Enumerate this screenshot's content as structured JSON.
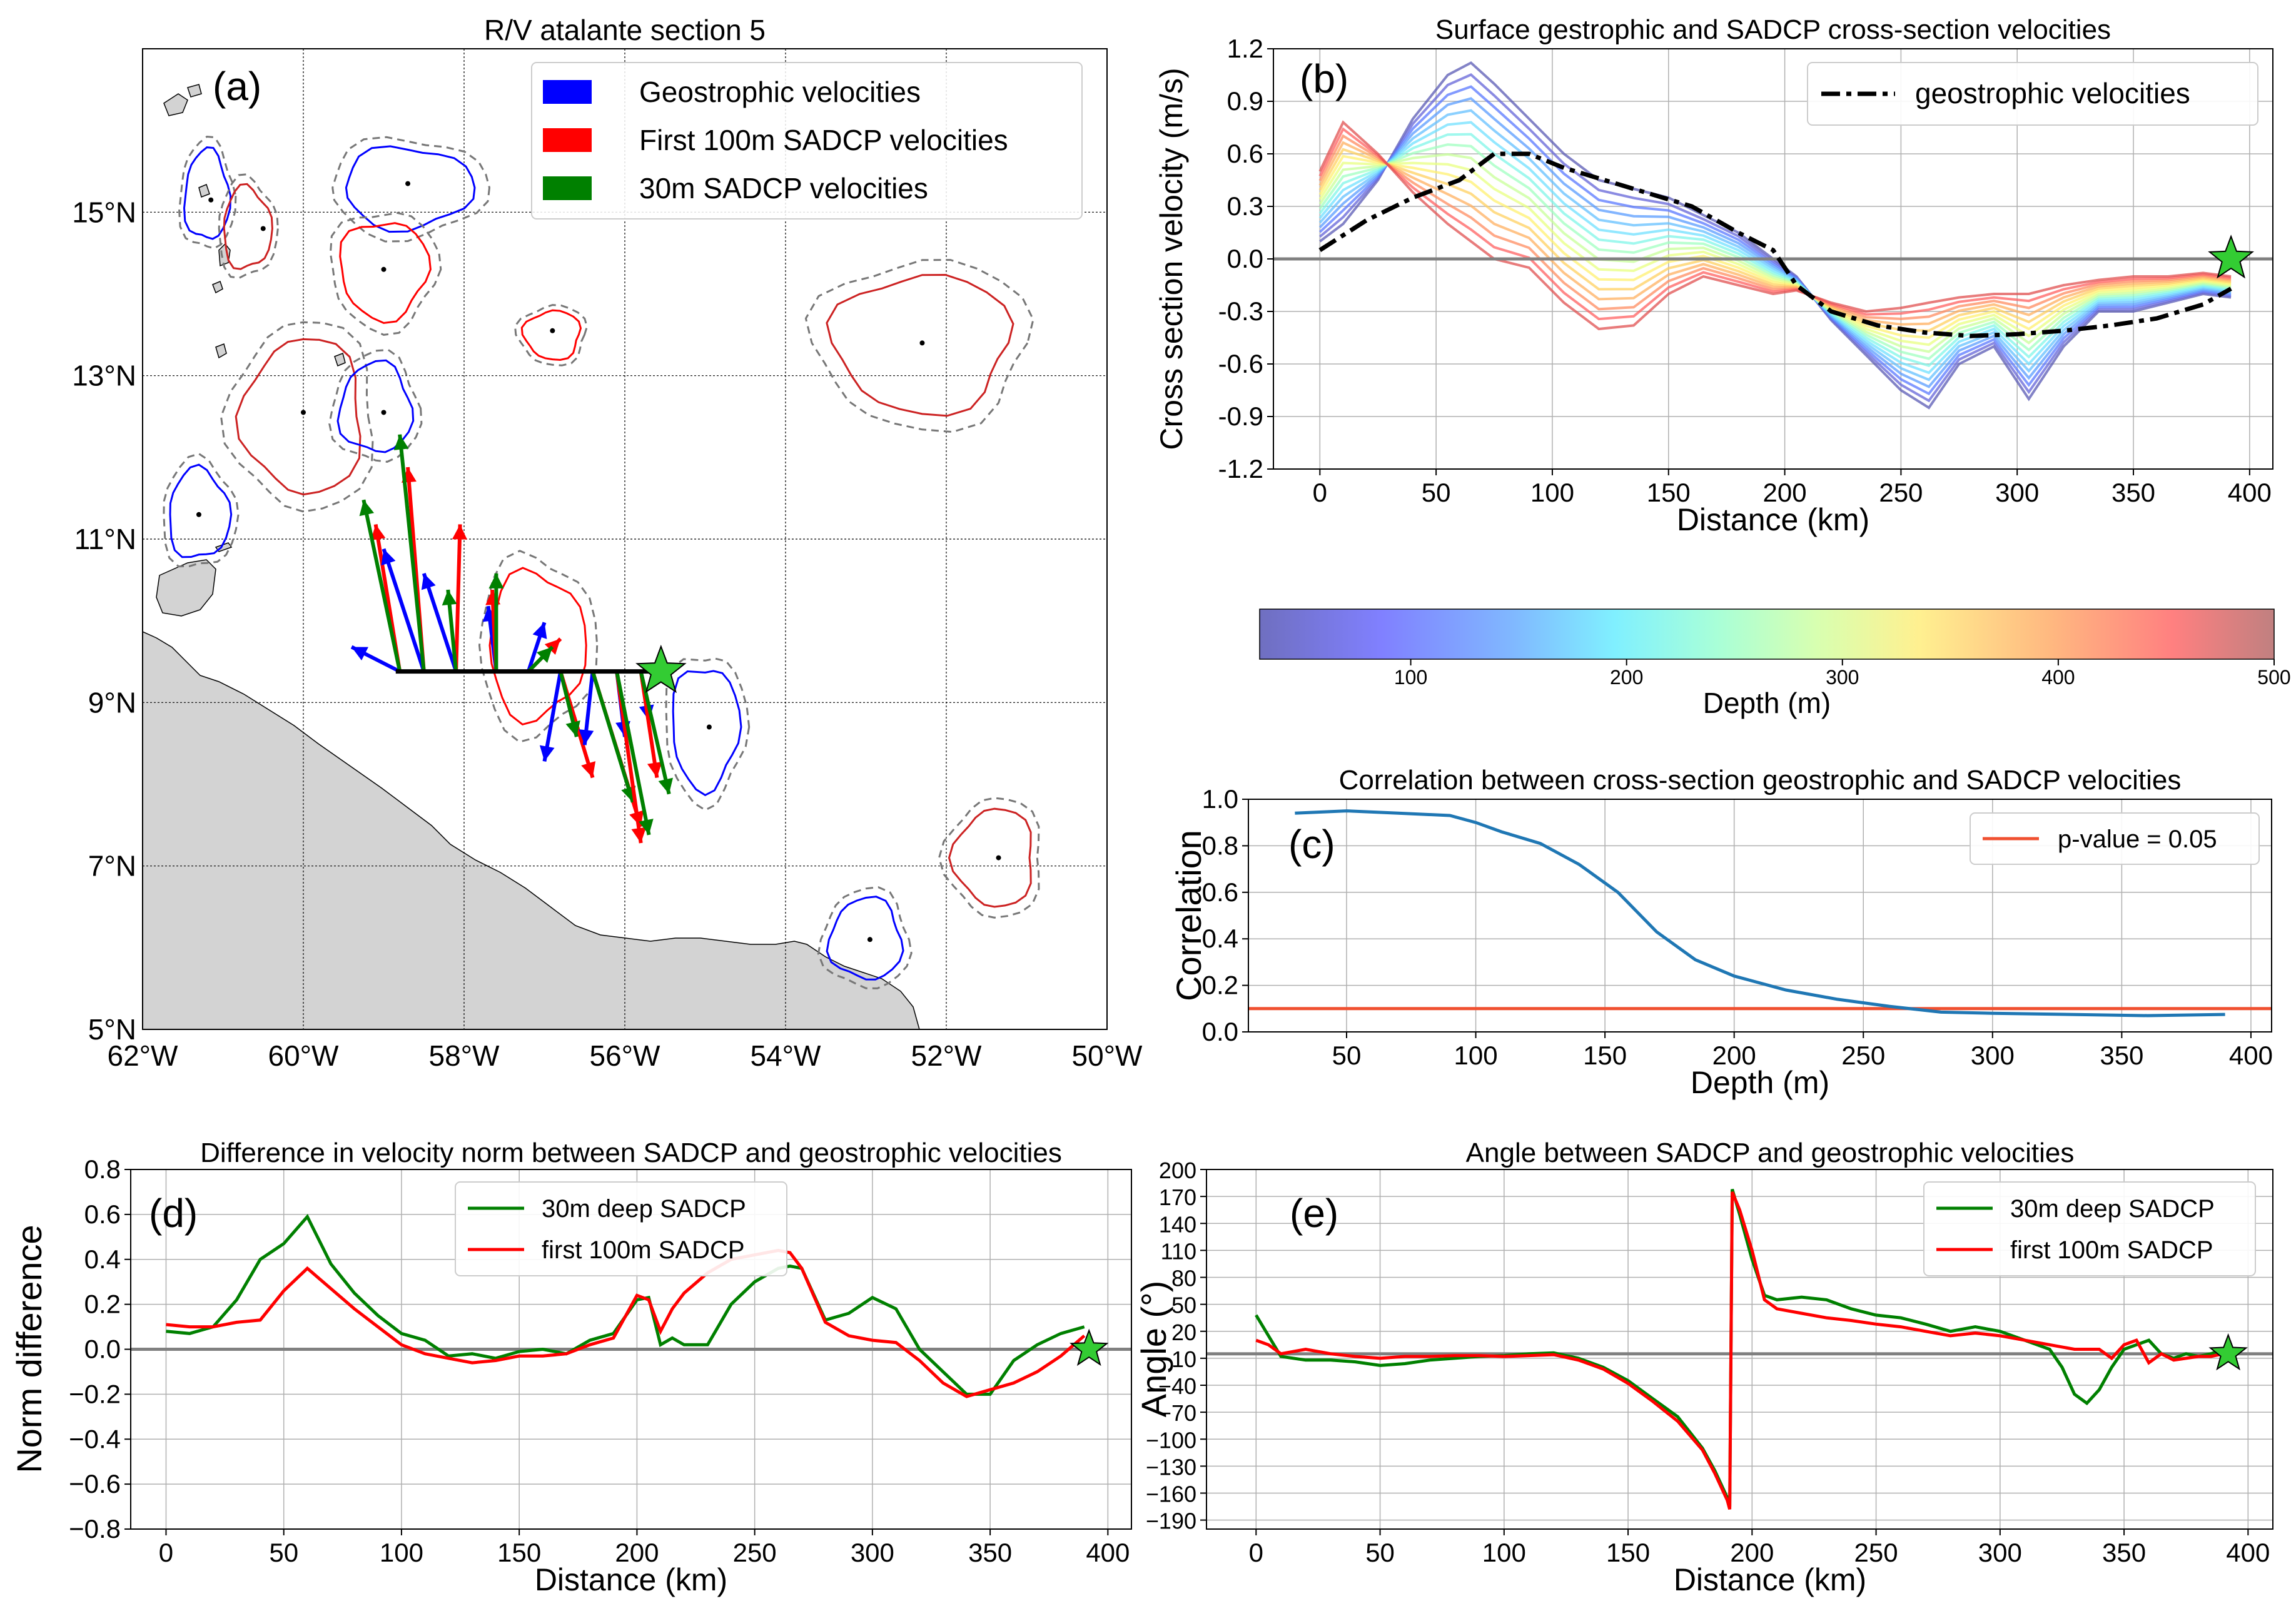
{
  "figure": {
    "panels": [
      "a",
      "b",
      "c",
      "d",
      "e"
    ]
  },
  "chart_data": [
    {
      "id": "a",
      "type": "map",
      "title": "R/V atalante section 5",
      "panel_label": "(a)",
      "lon_range": [
        -62,
        -50
      ],
      "lat_range": [
        5,
        17
      ],
      "x_ticks": [
        {
          "v": -62,
          "t": "62°W"
        },
        {
          "v": -60,
          "t": "60°W"
        },
        {
          "v": -58,
          "t": "58°W"
        },
        {
          "v": -56,
          "t": "56°W"
        },
        {
          "v": -54,
          "t": "54°W"
        },
        {
          "v": -52,
          "t": "52°W"
        },
        {
          "v": -50,
          "t": "50°W"
        }
      ],
      "y_ticks": [
        {
          "v": 5,
          "t": "5°N"
        },
        {
          "v": 7,
          "t": "7°N"
        },
        {
          "v": 9,
          "t": "9°N"
        },
        {
          "v": 11,
          "t": "11°N"
        },
        {
          "v": 13,
          "t": "13°N"
        },
        {
          "v": 15,
          "t": "15°N"
        }
      ],
      "legend": [
        {
          "label": "Geostrophic velocities",
          "color": "#0000ff"
        },
        {
          "label": "First 100m SADCP velocities",
          "color": "#ff0000"
        },
        {
          "label": "30m SADCP velocities",
          "color": "#008000"
        }
      ],
      "section": {
        "lon": [
          -58.85,
          -55.55
        ],
        "lat": 9.38,
        "end_marker": "star",
        "end_lon": -55.55
      },
      "eddies": [
        {
          "lon": -61.2,
          "lat": 15.2,
          "r_lon": 0.28,
          "r_lat": 0.55,
          "color": "#0000ff"
        },
        {
          "lon": -60.7,
          "lat": 14.8,
          "r_lon": 0.3,
          "r_lat": 0.5,
          "color": "#cc2222"
        },
        {
          "lon": -58.7,
          "lat": 15.3,
          "r_lon": 0.8,
          "r_lat": 0.5,
          "color": "#0000ff"
        },
        {
          "lon": -59.0,
          "lat": 14.3,
          "r_lon": 0.55,
          "r_lat": 0.6,
          "color": "#ff0000"
        },
        {
          "lon": -56.9,
          "lat": 13.5,
          "r_lon": 0.35,
          "r_lat": 0.3,
          "color": "#ff0000"
        },
        {
          "lon": -60.0,
          "lat": 12.5,
          "r_lon": 0.75,
          "r_lat": 0.95,
          "color": "#cc2222"
        },
        {
          "lon": -59.1,
          "lat": 12.6,
          "r_lon": 0.45,
          "r_lat": 0.55,
          "color": "#0000ff"
        },
        {
          "lon": -61.3,
          "lat": 11.3,
          "r_lon": 0.38,
          "r_lat": 0.55,
          "color": "#0000ff"
        },
        {
          "lon": -57.1,
          "lat": 9.7,
          "r_lon": 0.6,
          "r_lat": 0.9,
          "color": "#ff0000"
        },
        {
          "lon": -55.0,
          "lat": 8.7,
          "r_lon": 0.42,
          "r_lat": 0.75,
          "color": "#0000ff"
        },
        {
          "lon": -52.3,
          "lat": 13.4,
          "r_lon": 1.1,
          "r_lat": 0.85,
          "color": "#cc2222"
        },
        {
          "lon": -51.4,
          "lat": 7.1,
          "r_lon": 0.5,
          "r_lat": 0.6,
          "color": "#cc2222"
        },
        {
          "lon": -53.0,
          "lat": 6.1,
          "r_lon": 0.45,
          "r_lat": 0.5,
          "color": "#0000ff"
        }
      ],
      "eddy_centers": [
        {
          "lon": -61.15,
          "lat": 15.15
        },
        {
          "lon": -60.5,
          "lat": 14.8
        },
        {
          "lon": -58.7,
          "lat": 15.35
        },
        {
          "lon": -59.0,
          "lat": 14.3
        },
        {
          "lon": -56.9,
          "lat": 13.55
        },
        {
          "lon": -60.0,
          "lat": 12.55
        },
        {
          "lon": -59.0,
          "lat": 12.55
        },
        {
          "lon": -61.3,
          "lat": 11.3
        },
        {
          "lon": -54.95,
          "lat": 8.7
        },
        {
          "lon": -52.3,
          "lat": 13.4
        },
        {
          "lon": -51.35,
          "lat": 7.1
        },
        {
          "lon": -52.95,
          "lat": 6.1
        }
      ]
    },
    {
      "id": "b",
      "type": "line",
      "title": "Surface gestrophic and SADCP cross-section velocities",
      "panel_label": "(b)",
      "xlabel": "Distance (km)",
      "ylabel": "Cross section velocity (m/s)",
      "xlim": [
        -20,
        410
      ],
      "ylim": [
        -1.2,
        1.2
      ],
      "x_ticks": [
        0,
        50,
        100,
        150,
        200,
        250,
        300,
        350,
        400
      ],
      "y_ticks": [
        "-1.2",
        "-0.9",
        "-0.6",
        "-0.3",
        "0.0",
        "0.3",
        "0.6",
        "0.9",
        "1.2"
      ],
      "legend": [
        {
          "label": "geostrophic velocities",
          "style": "dash-dot",
          "color": "#000000"
        }
      ],
      "colorbar": {
        "label": "Depth (m)",
        "range": [
          30,
          500
        ],
        "ticks": [
          "100",
          "200",
          "300",
          "400",
          "500"
        ]
      },
      "depth_series_count": 16,
      "series": [
        {
          "name": "geostrophic velocities",
          "x": [
            0,
            20,
            40,
            60,
            75,
            90,
            105,
            120,
            140,
            160,
            180,
            195,
            205,
            220,
            240,
            260,
            280,
            300,
            320,
            340,
            360,
            380,
            392
          ],
          "y": [
            0.05,
            0.22,
            0.35,
            0.45,
            0.6,
            0.6,
            0.52,
            0.46,
            0.38,
            0.3,
            0.15,
            0.05,
            -0.15,
            -0.3,
            -0.38,
            -0.42,
            -0.44,
            -0.43,
            -0.41,
            -0.38,
            -0.34,
            -0.26,
            -0.17
          ]
        }
      ],
      "end_marker": {
        "x": 392,
        "y": 0.0
      }
    },
    {
      "id": "c",
      "type": "line",
      "title": "Correlation between cross-section geostrophic and SADCP velocities",
      "panel_label": "(c)",
      "xlabel": "Depth (m)",
      "ylabel": "Correlation",
      "xlim": [
        12,
        408
      ],
      "ylim": [
        0.0,
        1.0
      ],
      "x_ticks": [
        50,
        100,
        150,
        200,
        250,
        300,
        350,
        400
      ],
      "y_ticks": [
        "0.0",
        "0.2",
        "0.4",
        "0.6",
        "0.8",
        "1.0"
      ],
      "legend": [
        {
          "label": "p-value = 0.05",
          "color": "#f05030"
        }
      ],
      "pvalue_line": 0.1,
      "series": [
        {
          "name": "correlation",
          "color": "#1f77b4",
          "x": [
            30,
            50,
            70,
            90,
            100,
            110,
            125,
            140,
            155,
            170,
            185,
            200,
            220,
            240,
            260,
            280,
            300,
            330,
            360,
            390
          ],
          "y": [
            0.94,
            0.95,
            0.94,
            0.93,
            0.9,
            0.86,
            0.81,
            0.72,
            0.6,
            0.43,
            0.31,
            0.24,
            0.18,
            0.14,
            0.11,
            0.085,
            0.08,
            0.075,
            0.07,
            0.075
          ]
        }
      ]
    },
    {
      "id": "d",
      "type": "line",
      "title": "Difference in velocity norm between SADCP and geostrophic velocities",
      "panel_label": "(d)",
      "xlabel": "Distance (km)",
      "ylabel": "Norm difference",
      "xlim": [
        -15,
        410
      ],
      "ylim": [
        -0.8,
        0.8
      ],
      "x_ticks": [
        0,
        50,
        100,
        150,
        200,
        250,
        300,
        350,
        400
      ],
      "y_ticks": [
        "−0.8",
        "−0.6",
        "−0.4",
        "−0.2",
        "0.0",
        "0.2",
        "0.4",
        "0.6",
        "0.8"
      ],
      "legend": [
        {
          "label": "30m deep SADCP",
          "color": "#008000"
        },
        {
          "label": "first 100m SADCP",
          "color": "#ff0000"
        }
      ],
      "series": [
        {
          "name": "30m deep SADCP",
          "color": "#008000",
          "x": [
            0,
            10,
            20,
            30,
            40,
            50,
            60,
            70,
            80,
            90,
            100,
            110,
            120,
            130,
            140,
            150,
            160,
            170,
            180,
            190,
            200,
            205,
            210,
            215,
            220,
            230,
            240,
            250,
            260,
            265,
            270,
            280,
            290,
            300,
            310,
            320,
            330,
            340,
            350,
            360,
            370,
            380,
            390
          ],
          "y": [
            0.08,
            0.07,
            0.1,
            0.22,
            0.4,
            0.47,
            0.59,
            0.38,
            0.25,
            0.15,
            0.07,
            0.04,
            -0.03,
            -0.02,
            -0.04,
            -0.01,
            0.0,
            -0.02,
            0.04,
            0.07,
            0.22,
            0.23,
            0.02,
            0.05,
            0.02,
            0.02,
            0.2,
            0.3,
            0.36,
            0.37,
            0.36,
            0.13,
            0.16,
            0.23,
            0.18,
            0.0,
            -0.1,
            -0.2,
            -0.2,
            -0.05,
            0.02,
            0.07,
            0.1
          ]
        },
        {
          "name": "first 100m SADCP",
          "color": "#ff0000",
          "x": [
            0,
            10,
            20,
            30,
            40,
            50,
            60,
            70,
            80,
            90,
            100,
            110,
            120,
            130,
            140,
            150,
            160,
            170,
            180,
            190,
            200,
            205,
            210,
            215,
            220,
            230,
            240,
            250,
            260,
            265,
            270,
            280,
            290,
            300,
            310,
            320,
            330,
            340,
            350,
            360,
            370,
            380,
            390
          ],
          "y": [
            0.11,
            0.1,
            0.1,
            0.12,
            0.13,
            0.26,
            0.36,
            0.27,
            0.18,
            0.1,
            0.02,
            -0.02,
            -0.04,
            -0.06,
            -0.05,
            -0.03,
            -0.03,
            -0.02,
            0.02,
            0.05,
            0.24,
            0.22,
            0.08,
            0.18,
            0.25,
            0.34,
            0.4,
            0.42,
            0.44,
            0.43,
            0.36,
            0.12,
            0.06,
            0.04,
            0.03,
            -0.05,
            -0.15,
            -0.21,
            -0.18,
            -0.15,
            -0.1,
            -0.03,
            0.06
          ]
        }
      ],
      "end_marker": {
        "x": 392,
        "y": 0.0
      }
    },
    {
      "id": "e",
      "type": "line",
      "title": "Angle between SADCP and geostrophic velocities",
      "panel_label": "(e)",
      "xlabel": "Distance (km)",
      "ylabel": "Angle (°)",
      "xlim": [
        -20,
        410
      ],
      "ylim": [
        -200,
        200
      ],
      "x_ticks": [
        0,
        50,
        100,
        150,
        200,
        250,
        300,
        350,
        400
      ],
      "y_ticks": [
        "−190",
        "−160",
        "−130",
        "−100",
        "−70",
        "−40",
        "−10",
        "20",
        "50",
        "80",
        "110",
        "140",
        "170",
        "200"
      ],
      "legend": [
        {
          "label": "30m deep SADCP",
          "color": "#008000"
        },
        {
          "label": "first 100m SADCP",
          "color": "#ff0000"
        }
      ],
      "series": [
        {
          "name": "30m deep SADCP",
          "color": "#008000",
          "x": [
            0,
            5,
            10,
            20,
            30,
            40,
            50,
            60,
            70,
            80,
            90,
            100,
            110,
            120,
            130,
            140,
            150,
            160,
            170,
            180,
            185,
            190,
            191,
            192,
            195,
            200,
            205,
            210,
            220,
            230,
            240,
            250,
            260,
            270,
            280,
            290,
            300,
            310,
            320,
            325,
            330,
            335,
            340,
            345,
            350,
            355,
            360,
            365,
            370,
            375,
            380,
            385,
            390
          ],
          "y": [
            38,
            15,
            -8,
            -12,
            -12,
            -14,
            -18,
            -16,
            -12,
            -10,
            -8,
            -7,
            -5,
            -4,
            -10,
            -20,
            -35,
            -55,
            -75,
            -110,
            -135,
            -165,
            -175,
            178,
            150,
            100,
            60,
            55,
            58,
            55,
            45,
            38,
            35,
            28,
            20,
            25,
            20,
            10,
            0,
            -20,
            -50,
            -60,
            -45,
            -20,
            0,
            5,
            10,
            -5,
            -10,
            -5,
            -8,
            -5,
            0
          ]
        },
        {
          "name": "first 100m SADCP",
          "color": "#ff0000",
          "x": [
            0,
            5,
            10,
            20,
            30,
            40,
            50,
            60,
            70,
            80,
            90,
            100,
            110,
            120,
            130,
            140,
            150,
            160,
            170,
            180,
            185,
            190,
            191,
            192,
            195,
            200,
            205,
            210,
            220,
            230,
            240,
            250,
            260,
            270,
            280,
            290,
            300,
            310,
            320,
            330,
            340,
            345,
            350,
            355,
            360,
            365,
            370,
            375,
            380,
            385,
            390
          ],
          "y": [
            10,
            5,
            -5,
            0,
            -5,
            -8,
            -10,
            -8,
            -8,
            -7,
            -7,
            -8,
            -7,
            -6,
            -12,
            -22,
            -38,
            -58,
            -80,
            -112,
            -138,
            -168,
            -178,
            175,
            155,
            110,
            55,
            45,
            40,
            35,
            32,
            28,
            25,
            20,
            15,
            18,
            15,
            10,
            5,
            0,
            0,
            -10,
            5,
            10,
            -15,
            -5,
            -12,
            -10,
            -8,
            -8,
            -5
          ]
        }
      ],
      "end_marker": {
        "x": 392,
        "y": -5
      }
    }
  ]
}
